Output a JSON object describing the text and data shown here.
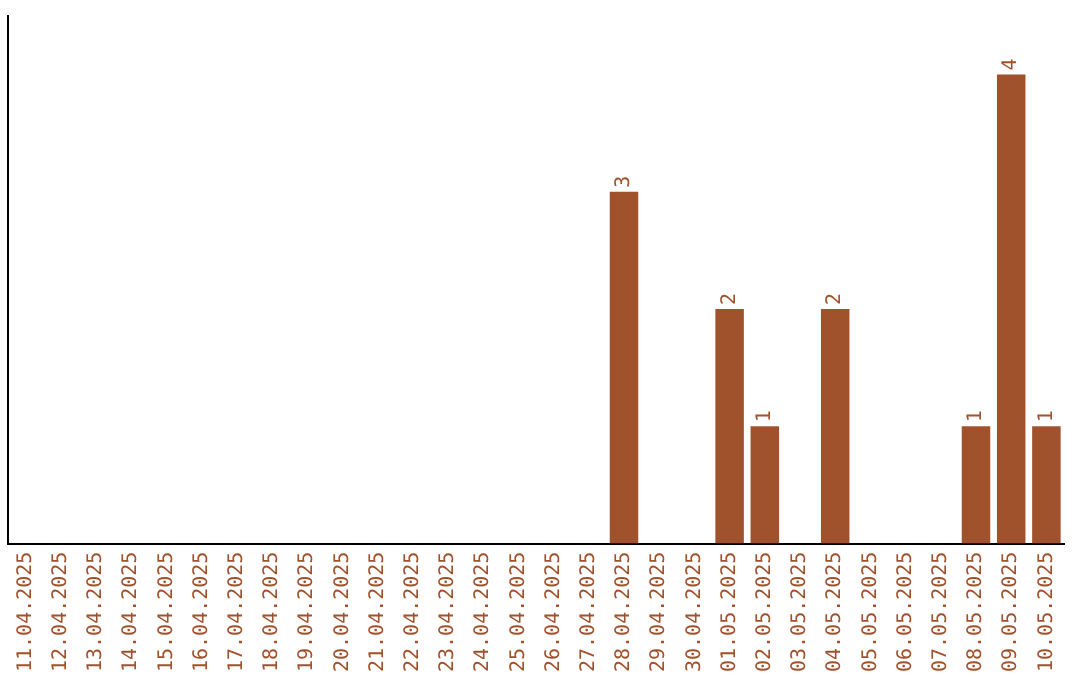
{
  "chart_data": {
    "type": "bar",
    "categories": [
      "11.04.2025",
      "12.04.2025",
      "13.04.2025",
      "14.04.2025",
      "15.04.2025",
      "16.04.2025",
      "17.04.2025",
      "18.04.2025",
      "19.04.2025",
      "20.04.2025",
      "21.04.2025",
      "22.04.2025",
      "23.04.2025",
      "24.04.2025",
      "25.04.2025",
      "26.04.2025",
      "27.04.2025",
      "28.04.2025",
      "29.04.2025",
      "30.04.2025",
      "01.05.2025",
      "02.05.2025",
      "03.05.2025",
      "04.05.2025",
      "05.05.2025",
      "06.05.2025",
      "07.05.2025",
      "08.05.2025",
      "09.05.2025",
      "10.05.2025"
    ],
    "values": [
      null,
      null,
      null,
      null,
      null,
      null,
      null,
      null,
      null,
      null,
      null,
      null,
      null,
      null,
      null,
      null,
      null,
      3,
      null,
      null,
      2,
      1,
      null,
      2,
      null,
      null,
      null,
      1,
      4,
      1
    ],
    "data_labels": true,
    "color": "#a0522d",
    "grid": false,
    "legend": false,
    "tick_labels": "x"
  }
}
